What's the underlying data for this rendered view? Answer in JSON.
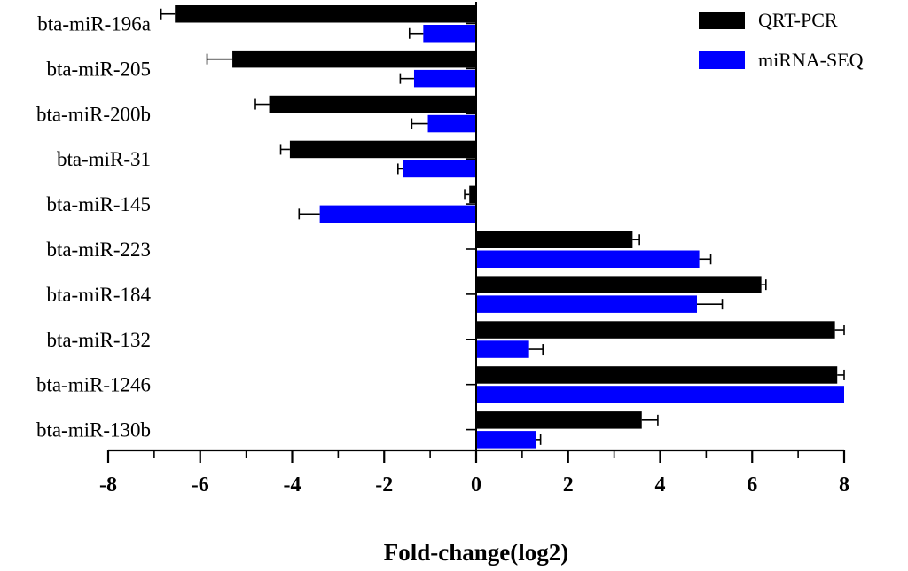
{
  "chart_data": {
    "type": "bar",
    "orientation": "horizontal",
    "categories": [
      "bta-miR-196a",
      "bta-miR-205",
      "bta-miR-200b",
      "bta-miR-31",
      "bta-miR-145",
      "bta-miR-223",
      "bta-miR-184",
      "bta-miR-132",
      "bta-miR-1246",
      "bta-miR-130b"
    ],
    "series": [
      {
        "name": "QRT-PCR",
        "color": "#000000",
        "values": [
          -6.55,
          -5.3,
          -4.5,
          -4.05,
          -0.15,
          3.4,
          6.2,
          7.8,
          7.85,
          3.6
        ],
        "errors": [
          0.3,
          0.55,
          0.3,
          0.2,
          0.1,
          0.15,
          0.1,
          0.2,
          0.15,
          0.35
        ]
      },
      {
        "name": "miRNA-SEQ",
        "color": "#0000ff",
        "values": [
          -1.15,
          -1.35,
          -1.05,
          -1.6,
          -3.4,
          4.85,
          4.8,
          1.15,
          8.0,
          1.3
        ],
        "errors": [
          0.3,
          0.3,
          0.35,
          0.1,
          0.45,
          0.25,
          0.55,
          0.3,
          0.0,
          0.1
        ]
      }
    ],
    "xlabel": "Fold-change(log2)",
    "xlim": [
      -8,
      8
    ],
    "xticks": [
      "-8",
      "-6",
      "-4",
      "-2",
      "0",
      "2",
      "4",
      "6",
      "8"
    ],
    "grid": false,
    "legend_position": "top-right"
  }
}
